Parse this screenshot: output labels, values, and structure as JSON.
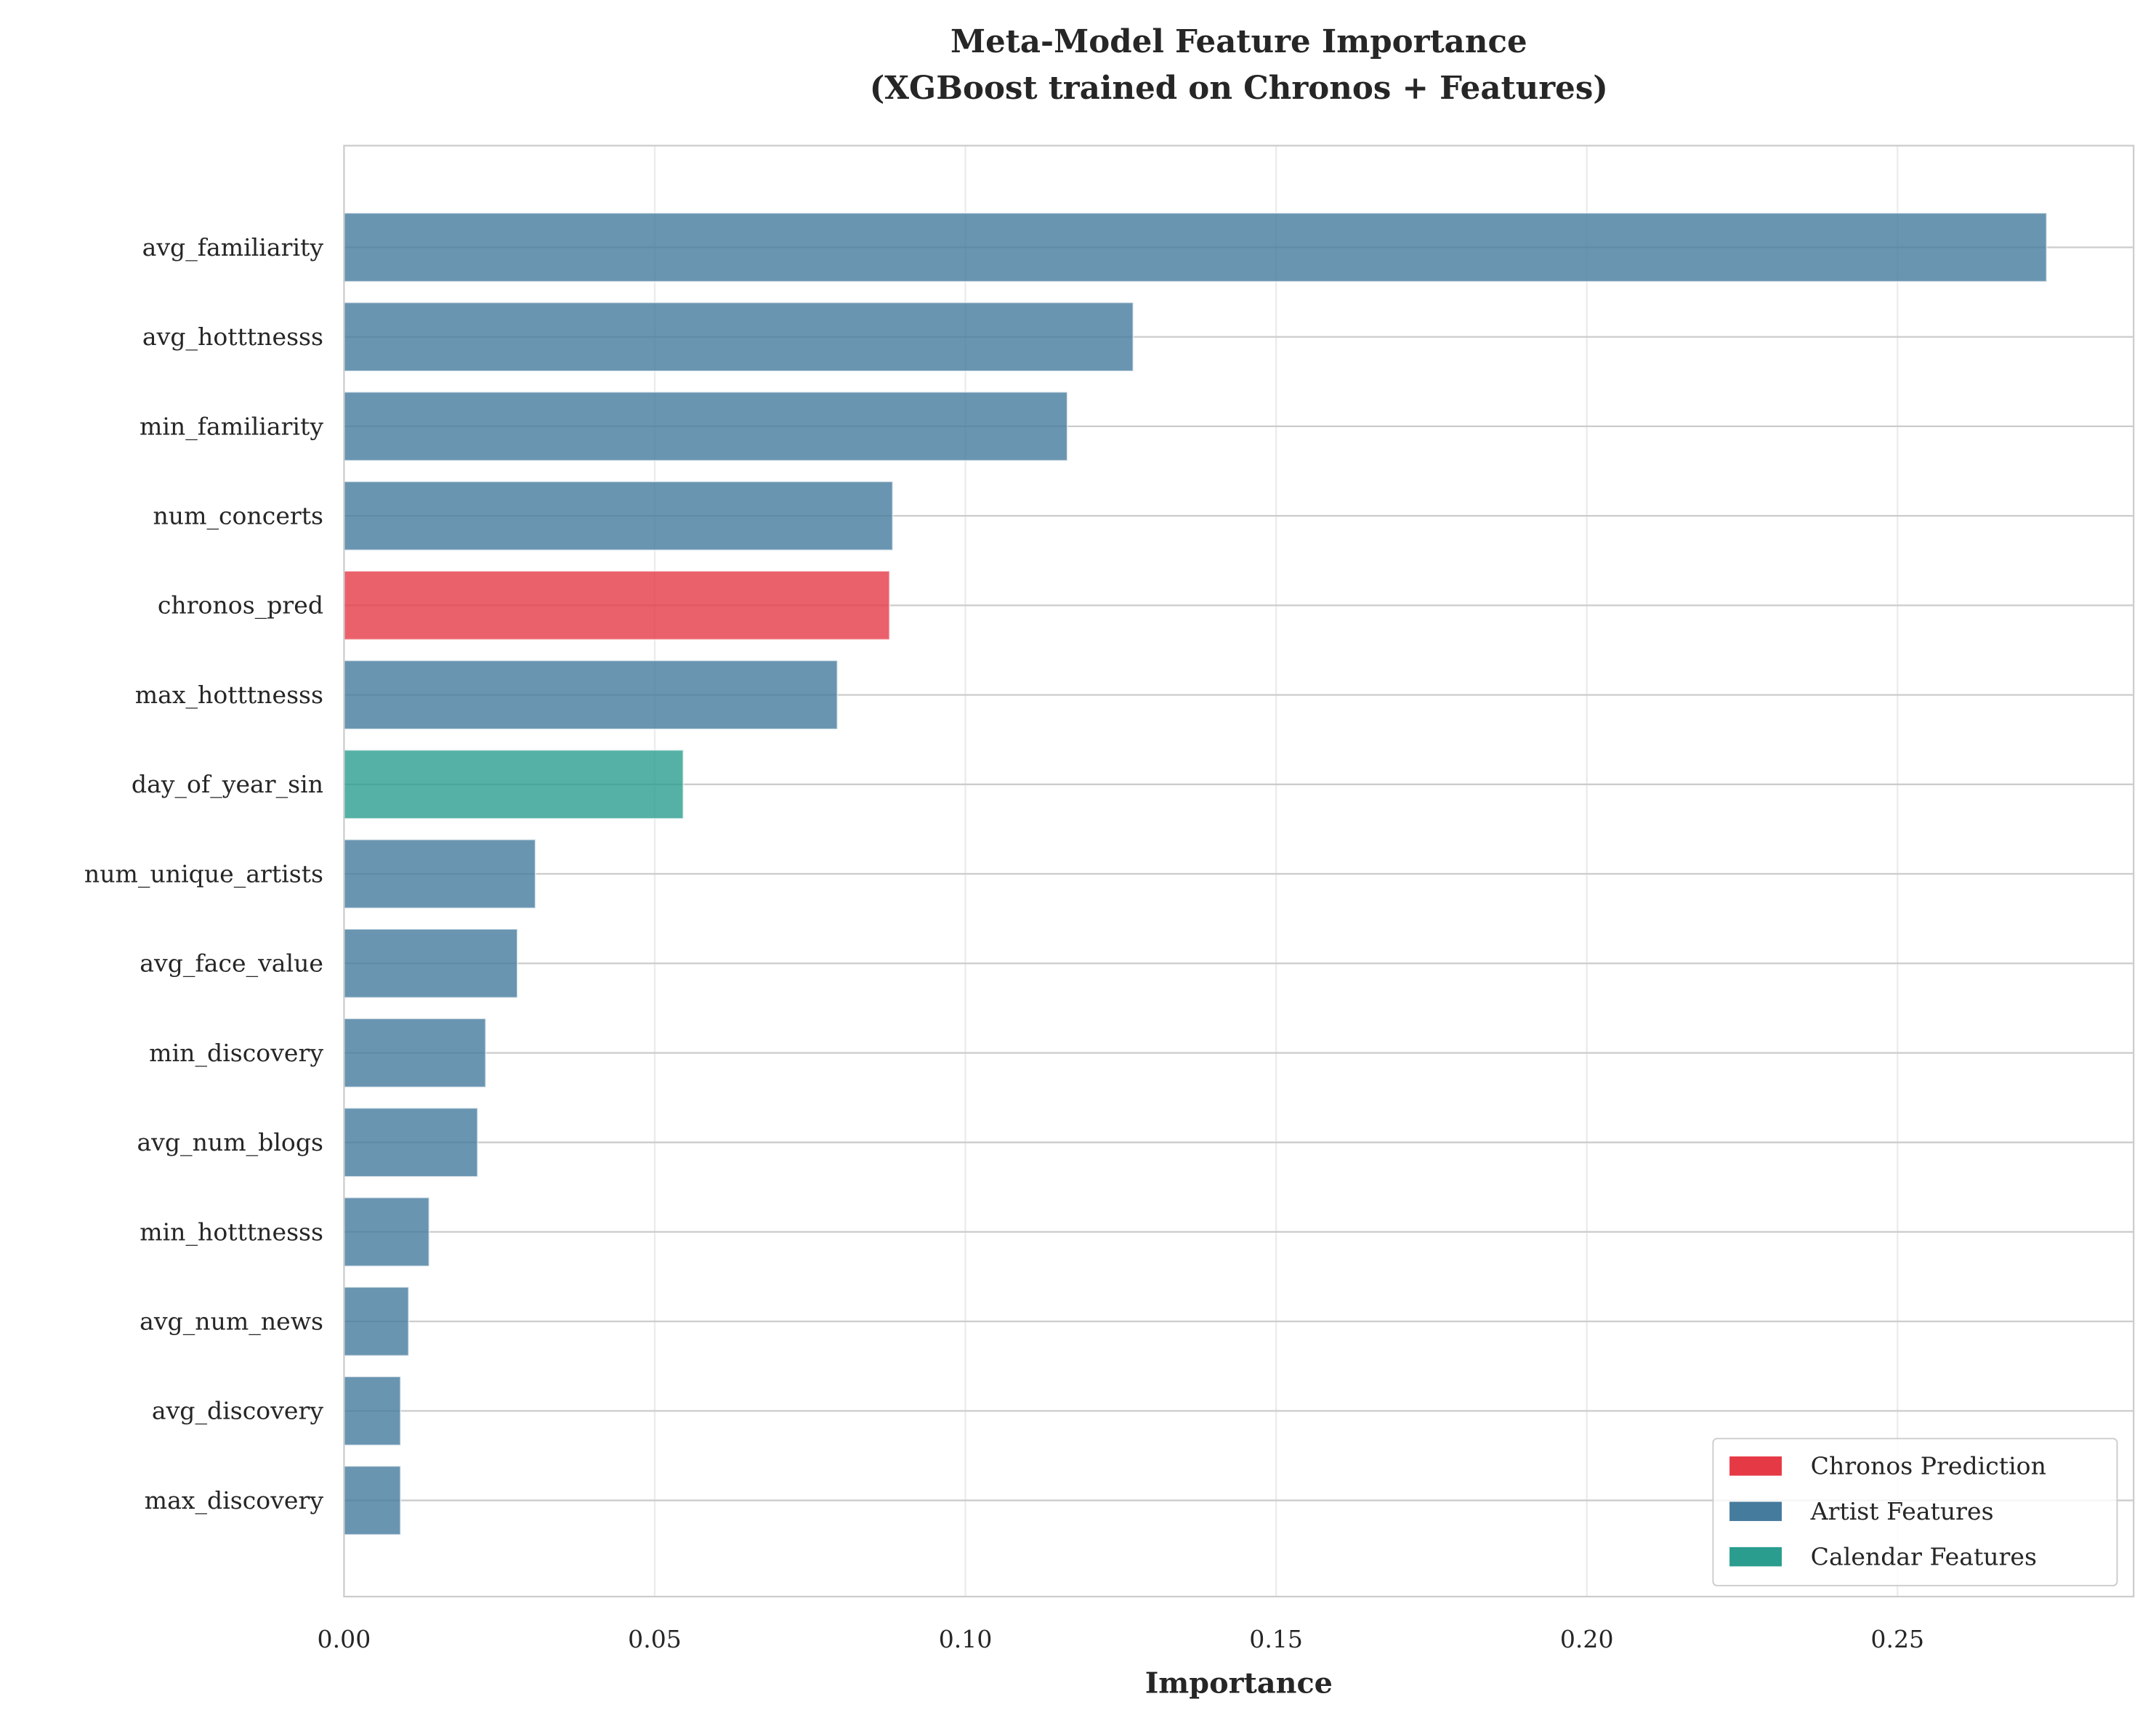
{
  "chart_data": {
    "type": "bar",
    "orientation": "horizontal",
    "title": "Meta-Model Feature Importance",
    "subtitle": "(XGBoost trained on Chronos + Features)",
    "xlabel": "Importance",
    "ylabel": "",
    "xlim": [
      0,
      0.288
    ],
    "xticks": [
      "0.00",
      "0.05",
      "0.10",
      "0.15",
      "0.20",
      "0.25"
    ],
    "xtick_values": [
      0,
      0.05,
      0.1,
      0.15,
      0.2,
      0.25
    ],
    "grid": true,
    "legend_position": "bottom-right",
    "categories": [
      "avg_familiarity",
      "avg_hotttnesss",
      "min_familiarity",
      "num_concerts",
      "chronos_pred",
      "max_hotttnesss",
      "day_of_year_sin",
      "num_unique_artists",
      "avg_face_value",
      "min_discovery",
      "avg_num_blogs",
      "min_hotttnesss",
      "avg_num_news",
      "avg_discovery",
      "max_discovery"
    ],
    "values": [
      0.274,
      0.127,
      0.1164,
      0.0883,
      0.0878,
      0.0794,
      0.0546,
      0.0308,
      0.0279,
      0.0228,
      0.0215,
      0.0137,
      0.0104,
      0.0091,
      0.0091
    ],
    "groups": [
      "artist",
      "artist",
      "artist",
      "artist",
      "chronos",
      "artist",
      "calendar",
      "artist",
      "artist",
      "artist",
      "artist",
      "artist",
      "artist",
      "artist",
      "artist"
    ],
    "legend": [
      {
        "key": "chronos",
        "label": "Chronos Prediction",
        "color": "#E63946"
      },
      {
        "key": "artist",
        "label": "Artist Features",
        "color": "#457B9D"
      },
      {
        "key": "calendar",
        "label": "Calendar Features",
        "color": "#2A9D8F"
      }
    ]
  }
}
